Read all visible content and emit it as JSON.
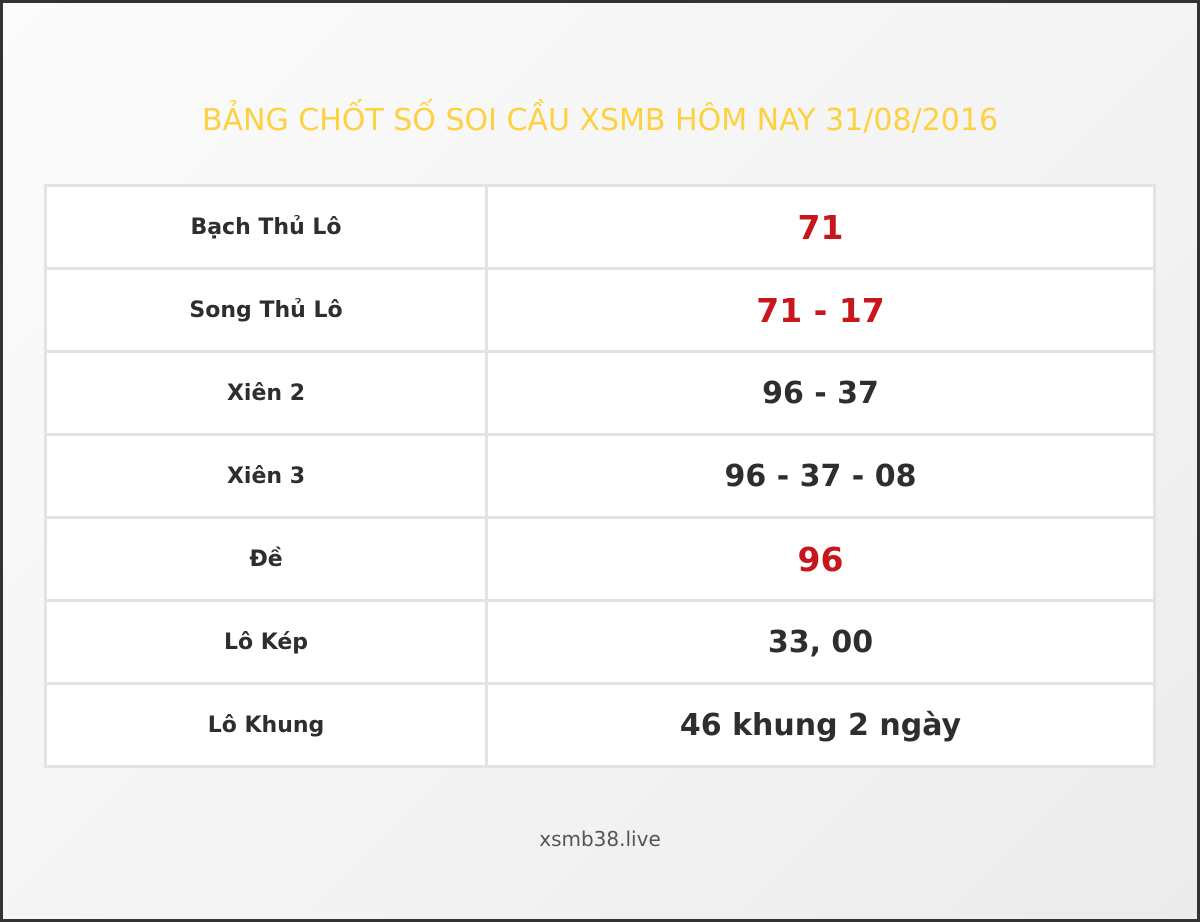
{
  "title": "BẢNG CHỐT SỐ SOI CẦU XSMB HÔM NAY 31/08/2016",
  "rows": [
    {
      "label": "Bạch Thủ Lô",
      "value": "71",
      "highlight": true
    },
    {
      "label": "Song Thủ Lô",
      "value": "71 - 17",
      "highlight": true
    },
    {
      "label": "Xiên 2",
      "value": "96 - 37",
      "highlight": false
    },
    {
      "label": "Xiên 3",
      "value": "96 - 37 - 08",
      "highlight": false
    },
    {
      "label": "Đề",
      "value": "96",
      "highlight": true
    },
    {
      "label": "Lô Kép",
      "value": "33, 00",
      "highlight": false
    },
    {
      "label": "Lô Khung",
      "value": "46 khung 2 ngày",
      "highlight": false
    }
  ],
  "footer": "xsmb38.live",
  "colors": {
    "title": "#fdd13f",
    "highlight": "#c8161d",
    "text": "#2e2e2e"
  }
}
